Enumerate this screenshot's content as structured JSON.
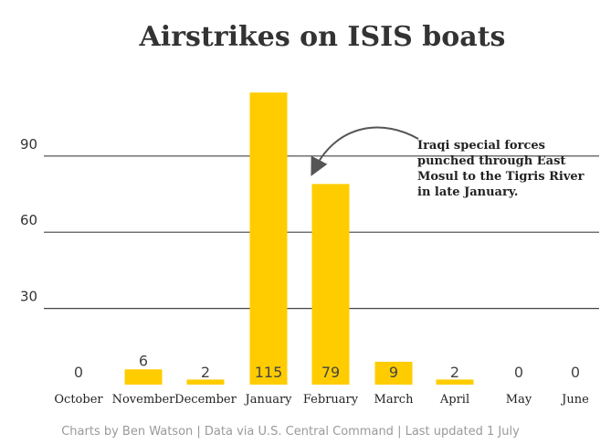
{
  "chart_data": {
    "type": "bar",
    "title": "Airstrikes on ISIS boats",
    "categories": [
      "October",
      "November",
      "December",
      "January",
      "February",
      "March",
      "April",
      "May",
      "June"
    ],
    "values": [
      0,
      6,
      2,
      115,
      79,
      9,
      2,
      0,
      0
    ],
    "value_labels": [
      "0",
      "6",
      "2",
      "115",
      "79",
      "9",
      "2",
      "0",
      "0"
    ],
    "yticks": [
      30,
      60,
      90
    ],
    "ytick_labels": [
      "30",
      "60",
      "90"
    ],
    "ylim": [
      0,
      120
    ],
    "grid": true,
    "bar_color": "#ffcc00",
    "annotation": {
      "lines": [
        "Iraqi special forces",
        "punched through East",
        "Mosul to the Tigris River",
        "in late January."
      ],
      "target_category": "February"
    },
    "footer": "Charts by Ben Watson | Data via U.S. Central Command | Last updated 1 July"
  }
}
